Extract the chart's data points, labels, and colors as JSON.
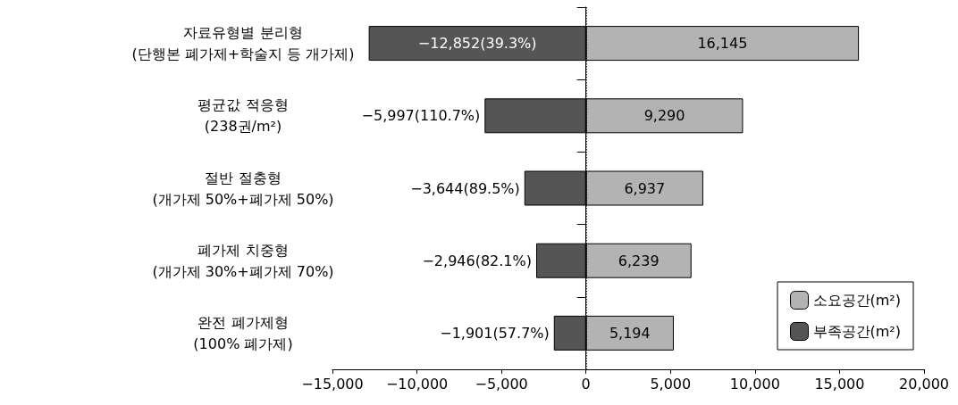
{
  "chart_data": {
    "type": "bar",
    "orientation": "horizontal",
    "stacked": true,
    "categories": [
      "자료유형별 분리형\n(단행본 폐가제+학술지 등 개가제)",
      "평균값 적응형\n(238권/m²)",
      "절반 절충형\n(개가제 50%+폐가제 50%)",
      "폐가제 치중형\n(개가제 30%+폐가제 70%)",
      "완전 폐가제형\n(100% 폐가제)"
    ],
    "series": [
      {
        "name": "소요공간(m²)",
        "color": "#b3b3b3",
        "values": [
          16145,
          9290,
          6937,
          6239,
          5194
        ],
        "value_labels": [
          "16,145",
          "9,290",
          "6,937",
          "6,239",
          "5,194"
        ]
      },
      {
        "name": "부족공간(m²)",
        "color": "#555555",
        "values": [
          -12852,
          -5997,
          -3644,
          -2946,
          -1901
        ],
        "value_labels": [
          "−12,852(39.3%)",
          "−5,997(110.7%)",
          "−3,644(89.5%)",
          "−2,946(82.1%)",
          "−1,901(57.7%)"
        ]
      }
    ],
    "xlim": [
      -15000,
      20000
    ],
    "xticks": [
      {
        "value": -15000,
        "label": "−15,000"
      },
      {
        "value": -10000,
        "label": "−10,000"
      },
      {
        "value": -5000,
        "label": "−5,000"
      },
      0,
      {
        "value": 5000,
        "label": "5,000"
      },
      {
        "value": 10000,
        "label": "10,000"
      },
      {
        "value": 15000,
        "label": "15,000"
      },
      {
        "value": 20000,
        "label": "20,000"
      }
    ],
    "ref_lines": [
      {
        "axis": "x",
        "value": 0,
        "line_style": "dotted",
        "color": "#000000"
      }
    ],
    "legend": "bottom right",
    "grid": false
  }
}
